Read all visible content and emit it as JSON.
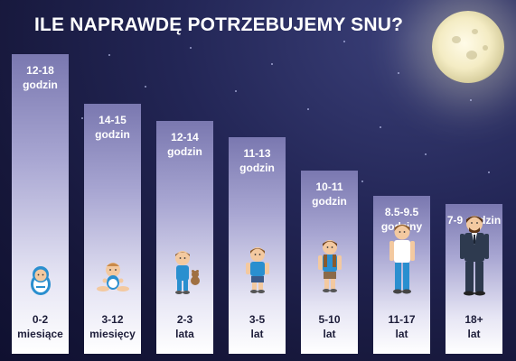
{
  "title": "ILE NAPRAWDĘ POTRZEBUJEMY SNU?",
  "chart_data": {
    "type": "bar",
    "title": "ILE NAPRAWDĘ POTRZEBUJEMY SNU?",
    "categories": [
      {
        "age": "0-2",
        "unit": "miesiące"
      },
      {
        "age": "3-12",
        "unit": "miesięcy"
      },
      {
        "age": "2-3",
        "unit": "lata"
      },
      {
        "age": "3-5",
        "unit": "lat"
      },
      {
        "age": "5-10",
        "unit": "lat"
      },
      {
        "age": "11-17",
        "unit": "lat"
      },
      {
        "age": "18+",
        "unit": "lat"
      }
    ],
    "labels": [
      {
        "line1": "12-18",
        "line2": "godzin"
      },
      {
        "line1": "14-15",
        "line2": "godzin"
      },
      {
        "line1": "12-14",
        "line2": "godzin"
      },
      {
        "line1": "11-13",
        "line2": "godzin"
      },
      {
        "line1": "10-11",
        "line2": "godzin"
      },
      {
        "line1": "8.5-9.5",
        "line2": "godziny"
      },
      {
        "line1": "7-9 godzin",
        "line2": ""
      }
    ],
    "ranges": [
      [
        12,
        18
      ],
      [
        14,
        15
      ],
      [
        12,
        14
      ],
      [
        11,
        13
      ],
      [
        10,
        11
      ],
      [
        8.5,
        9.5
      ],
      [
        7,
        9
      ]
    ],
    "colors": {
      "bar_top": "#7a78b0",
      "bar_bottom": "#ffffff",
      "background": "#1c1e4a"
    }
  }
}
